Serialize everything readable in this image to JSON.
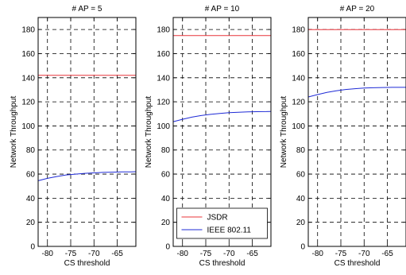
{
  "chart_data": [
    {
      "type": "line",
      "title": "# AP = 5",
      "xlabel": "CS threshold",
      "ylabel": "Network Throughput",
      "xlim": [
        -82,
        -61
      ],
      "ylim": [
        0,
        190
      ],
      "xticks": [
        "-80",
        "-75",
        "-70",
        "-65"
      ],
      "yticks": [
        "0",
        "20",
        "40",
        "60",
        "80",
        "100",
        "120",
        "140",
        "160",
        "180"
      ],
      "grid": true,
      "series": [
        {
          "name": "JSDR",
          "color": "#e8343a",
          "x": [
            -82,
            -61
          ],
          "y": [
            142,
            142
          ]
        },
        {
          "name": "IEEE 802.11",
          "color": "#1f2bd6",
          "x": [
            -82,
            -80,
            -78,
            -76,
            -74,
            -72,
            -70,
            -68,
            -66,
            -64,
            -62,
            -61
          ],
          "y": [
            54.5,
            56.5,
            58.0,
            59.3,
            60.0,
            60.6,
            61.0,
            61.4,
            61.6,
            61.8,
            61.9,
            62.0
          ]
        }
      ]
    },
    {
      "type": "line",
      "title": "# AP = 10",
      "xlabel": "CS threshold",
      "ylabel": "Network Throughput",
      "xlim": [
        -82,
        -61
      ],
      "ylim": [
        0,
        190
      ],
      "xticks": [
        "-80",
        "-75",
        "-70",
        "-65"
      ],
      "yticks": [
        "0",
        "20",
        "40",
        "60",
        "80",
        "100",
        "120",
        "140",
        "160",
        "180"
      ],
      "grid": true,
      "legend": {
        "placement": "bottom-center",
        "entries": [
          "JSDR",
          "IEEE 802.11"
        ]
      },
      "series": [
        {
          "name": "JSDR",
          "color": "#e8343a",
          "x": [
            -82,
            -61
          ],
          "y": [
            175,
            175
          ]
        },
        {
          "name": "IEEE 802.11",
          "color": "#1f2bd6",
          "x": [
            -82,
            -80,
            -78,
            -76,
            -74,
            -72,
            -70,
            -68,
            -66,
            -64,
            -62,
            -61
          ],
          "y": [
            103.5,
            105.5,
            107.3,
            108.6,
            109.6,
            110.4,
            111.0,
            111.3,
            111.6,
            111.8,
            111.9,
            112.0
          ]
        }
      ]
    },
    {
      "type": "line",
      "title": "# AP = 20",
      "xlabel": "CS threshold",
      "ylabel": "Network Throughput",
      "xlim": [
        -82,
        -61
      ],
      "ylim": [
        0,
        190
      ],
      "xticks": [
        "-80",
        "-75",
        "-70",
        "-65"
      ],
      "yticks": [
        "0",
        "20",
        "40",
        "60",
        "80",
        "100",
        "120",
        "140",
        "160",
        "180"
      ],
      "grid": true,
      "series": [
        {
          "name": "JSDR",
          "color": "#e8343a",
          "x": [
            -82,
            -61
          ],
          "y": [
            180,
            180
          ]
        },
        {
          "name": "IEEE 802.11",
          "color": "#1f2bd6",
          "x": [
            -82,
            -80,
            -78,
            -76,
            -74,
            -72,
            -70,
            -68,
            -66,
            -64,
            -62,
            -61
          ],
          "y": [
            124.0,
            126.0,
            127.8,
            129.2,
            130.2,
            130.9,
            131.4,
            131.7,
            131.9,
            132.0,
            132.0,
            132.0
          ]
        }
      ]
    }
  ]
}
